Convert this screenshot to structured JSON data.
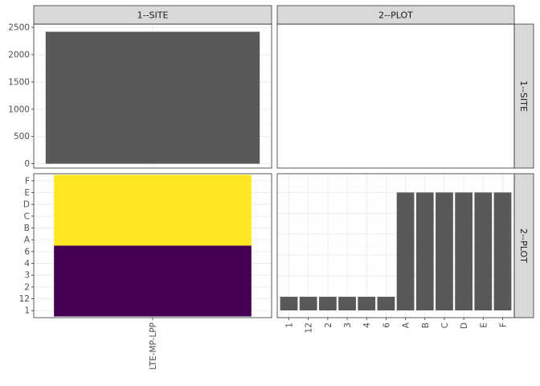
{
  "chart_data": {
    "type": "bar",
    "layout": "facet_grid",
    "facets": {
      "columns": [
        "1--SITE",
        "2--PLOT"
      ],
      "rows": [
        "1--SITE",
        "2--PLOT"
      ]
    },
    "panels": [
      {
        "row": "1--SITE",
        "col": "1--SITE",
        "type": "bar",
        "categories": [
          "LTE-MP-LPP"
        ],
        "values": [
          2420
        ],
        "ylim": [
          -80,
          2560
        ],
        "yticks": [
          "0",
          "500",
          "1000",
          "1500",
          "2000",
          "2500"
        ],
        "bar_color": "#595959"
      },
      {
        "row": "1--SITE",
        "col": "2--PLOT",
        "type": "empty"
      },
      {
        "row": "2--PLOT",
        "col": "1--SITE",
        "type": "stacked_bar",
        "categories": [
          "LTE-MP-LPP"
        ],
        "y_levels": [
          "1",
          "12",
          "2",
          "3",
          "4",
          "6",
          "A",
          "B",
          "C",
          "D",
          "E",
          "F"
        ],
        "segments": [
          {
            "levels": [
              "1",
              "12",
              "2",
              "3",
              "4",
              "6"
            ],
            "color": "#440154"
          },
          {
            "levels": [
              "A",
              "B",
              "C",
              "D",
              "E",
              "F"
            ],
            "color": "#FDE725"
          }
        ]
      },
      {
        "row": "2--PLOT",
        "col": "2--PLOT",
        "type": "bar",
        "categories": [
          "1",
          "12",
          "2",
          "3",
          "4",
          "6",
          "A",
          "B",
          "C",
          "D",
          "E",
          "F"
        ],
        "values": [
          1,
          1,
          1,
          1,
          1,
          1,
          6,
          6,
          6,
          6,
          6,
          6
        ],
        "ylim": [
          0,
          6.9
        ],
        "bar_color": "#595959"
      }
    ]
  }
}
